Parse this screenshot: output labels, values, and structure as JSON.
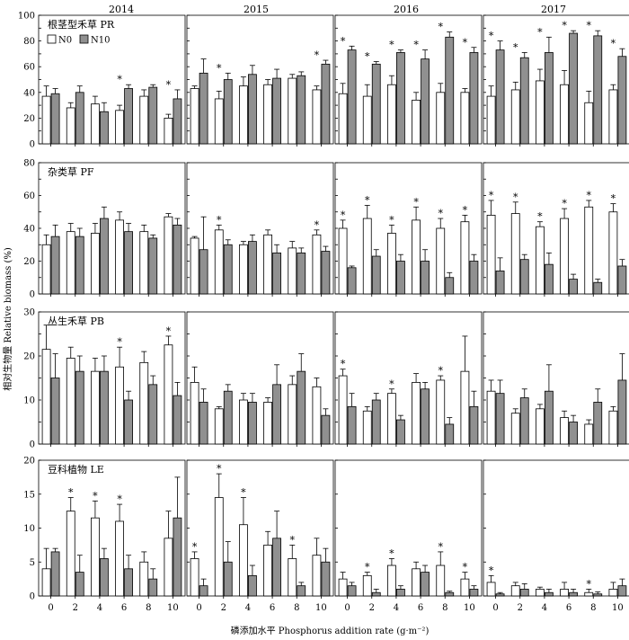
{
  "figure": {
    "ylabel": "相对生物量 Relative biomass (%)",
    "xlabel": "磷添加水平 Phosphorus addition rate (g·m⁻²)"
  },
  "legend": {
    "items": [
      "N0",
      "N10"
    ],
    "colors": [
      "#ffffff",
      "#909090"
    ],
    "placement": "inside top-left of first panel"
  },
  "years": [
    "2014",
    "2015",
    "2016",
    "2017"
  ],
  "chart_data": [
    {
      "type": "bar",
      "label": "根茎型禾草 PR",
      "ylim": [
        0,
        100
      ],
      "yticks": [
        0,
        10,
        20,
        30,
        40,
        50,
        60,
        70,
        80,
        90,
        100
      ],
      "ytick_labels": [
        "0",
        "",
        "20",
        "",
        "40",
        "",
        "60",
        "",
        "80",
        "",
        "100"
      ],
      "categories": [
        "0",
        "2",
        "4",
        "6",
        "8",
        "10"
      ],
      "panels": [
        {
          "year": "2014",
          "N0": [
            37,
            28,
            31,
            26,
            37,
            20
          ],
          "N0_err": [
            8,
            4,
            6,
            4,
            5,
            3
          ],
          "N10": [
            39,
            40,
            25,
            43,
            44,
            35
          ],
          "N10_err": [
            4,
            5,
            7,
            3,
            2,
            7
          ],
          "stars": [
            "",
            "",
            "",
            "*",
            "",
            "*"
          ]
        },
        {
          "year": "2015",
          "N0": [
            43,
            35,
            45,
            46,
            51,
            42
          ],
          "N0_err": [
            2,
            6,
            7,
            4,
            3,
            3
          ],
          "N10": [
            55,
            50,
            54,
            51,
            53,
            62
          ],
          "N10_err": [
            11,
            5,
            7,
            7,
            3,
            3
          ],
          "stars": [
            "",
            "*",
            "",
            "",
            "",
            "*"
          ]
        },
        {
          "year": "2016",
          "N0": [
            39,
            37,
            46,
            34,
            40,
            40
          ],
          "N0_err": [
            8,
            9,
            7,
            6,
            7,
            3
          ],
          "N10": [
            73,
            62,
            71,
            66,
            83,
            71
          ],
          "N10_err": [
            3,
            2,
            2,
            7,
            4,
            4
          ],
          "stars": [
            "*",
            "*",
            "*",
            "*",
            "*",
            "*"
          ]
        },
        {
          "year": "2017",
          "N0": [
            37,
            42,
            49,
            46,
            32,
            42
          ],
          "N0_err": [
            8,
            6,
            9,
            11,
            9,
            4
          ],
          "N10": [
            73,
            67,
            71,
            86,
            84,
            68
          ],
          "N10_err": [
            7,
            4,
            12,
            2,
            4,
            6
          ],
          "stars": [
            "*",
            "*",
            "*",
            "*",
            "*",
            "*"
          ]
        }
      ]
    },
    {
      "type": "bar",
      "label": "杂类草 PF",
      "ylim": [
        0,
        80
      ],
      "yticks": [
        0,
        10,
        20,
        30,
        40,
        50,
        60,
        70,
        80
      ],
      "ytick_labels": [
        "0",
        "",
        "20",
        "",
        "40",
        "",
        "60",
        "",
        "80"
      ],
      "categories": [
        "0",
        "2",
        "4",
        "6",
        "8",
        "10"
      ],
      "panels": [
        {
          "year": "2014",
          "N0": [
            30,
            38,
            37,
            45,
            38,
            47
          ],
          "N0_err": [
            6,
            5,
            6,
            5,
            4,
            2
          ],
          "N10": [
            35,
            35,
            46,
            38,
            34,
            42
          ],
          "N10_err": [
            7,
            5,
            7,
            5,
            2,
            4
          ],
          "stars": [
            "",
            "",
            "",
            "",
            "",
            ""
          ]
        },
        {
          "year": "2015",
          "N0": [
            34,
            39,
            30,
            36,
            28,
            36
          ],
          "N0_err": [
            1,
            3,
            2,
            3,
            4,
            3
          ],
          "N10": [
            27,
            30,
            32,
            25,
            25,
            26
          ],
          "N10_err": [
            20,
            3,
            4,
            5,
            3,
            3
          ],
          "stars": [
            "",
            "*",
            "",
            "",
            "",
            "*"
          ]
        },
        {
          "year": "2016",
          "N0": [
            40,
            46,
            37,
            45,
            40,
            44
          ],
          "N0_err": [
            5,
            8,
            5,
            8,
            6,
            4
          ],
          "N10": [
            16,
            23,
            20,
            20,
            10,
            20
          ],
          "N10_err": [
            1,
            4,
            4,
            7,
            3,
            4
          ],
          "stars": [
            "*",
            "*",
            "*",
            "*",
            "*",
            "*"
          ]
        },
        {
          "year": "2017",
          "N0": [
            48,
            49,
            41,
            46,
            53,
            50
          ],
          "N0_err": [
            9,
            7,
            3,
            6,
            4,
            5
          ],
          "N10": [
            14,
            21,
            18,
            9,
            7,
            17
          ],
          "N10_err": [
            8,
            3,
            7,
            3,
            2,
            4
          ],
          "stars": [
            "*",
            "*",
            "*",
            "*",
            "*",
            "*"
          ]
        }
      ]
    },
    {
      "type": "bar",
      "label": "丛生禾草 PB",
      "ylim": [
        0,
        30
      ],
      "yticks": [
        0,
        5,
        10,
        15,
        20,
        25,
        30
      ],
      "ytick_labels": [
        "0",
        "",
        "10",
        "",
        "20",
        "",
        "30"
      ],
      "categories": [
        "0",
        "2",
        "4",
        "6",
        "8",
        "10"
      ],
      "panels": [
        {
          "year": "2014",
          "N0": [
            21.5,
            19.5,
            16.5,
            17.5,
            18.5,
            22.5
          ],
          "N0_err": [
            5.5,
            2.5,
            3,
            4.5,
            2.5,
            2
          ],
          "N10": [
            15,
            16.5,
            16.5,
            10,
            13.5,
            11
          ],
          "N10_err": [
            5.5,
            3.5,
            3.5,
            2,
            2,
            3
          ],
          "stars": [
            "",
            "",
            "",
            "*",
            "",
            "*"
          ]
        },
        {
          "year": "2015",
          "N0": [
            14,
            8,
            10,
            9.5,
            13.5,
            13
          ],
          "N0_err": [
            3.5,
            0.5,
            1.5,
            1,
            2,
            2
          ],
          "N10": [
            9.5,
            12,
            9.5,
            13.5,
            16.5,
            6.5
          ],
          "N10_err": [
            3,
            1.5,
            2,
            4.5,
            4,
            1.5
          ],
          "stars": [
            "",
            "",
            "",
            "",
            "",
            ""
          ]
        },
        {
          "year": "2016",
          "N0": [
            15.5,
            7.5,
            11.5,
            14,
            14.5,
            16.5
          ],
          "N0_err": [
            1.5,
            1,
            1,
            2,
            1,
            8
          ],
          "N10": [
            8.5,
            10,
            5.5,
            12.5,
            4.5,
            8.5
          ],
          "N10_err": [
            3,
            1.5,
            1,
            1.5,
            1.5,
            3.5
          ],
          "stars": [
            "*",
            "",
            "*",
            "",
            "*",
            ""
          ]
        },
        {
          "year": "2017",
          "N0": [
            12,
            7,
            8,
            6,
            4.5,
            7.5
          ],
          "N0_err": [
            2.5,
            1,
            1,
            1.5,
            1,
            1
          ],
          "N10": [
            11.5,
            10.5,
            12,
            5,
            9.5,
            14.5
          ],
          "N10_err": [
            3,
            2,
            6,
            1.5,
            3,
            6
          ],
          "stars": [
            "",
            "",
            "",
            "",
            "",
            ""
          ]
        }
      ]
    },
    {
      "type": "bar",
      "label": "豆科植物 LE",
      "ylim": [
        0,
        20
      ],
      "yticks": [
        0,
        5,
        10,
        15,
        20
      ],
      "ytick_labels": [
        "0",
        "5",
        "10",
        "15",
        "20"
      ],
      "categories": [
        "0",
        "2",
        "4",
        "6",
        "8",
        "10"
      ],
      "panels": [
        {
          "year": "2014",
          "N0": [
            4,
            12.5,
            11.5,
            11,
            5,
            8.5
          ],
          "N0_err": [
            3,
            2,
            2.5,
            2.5,
            1.5,
            4
          ],
          "N10": [
            6.5,
            3.5,
            5.5,
            4,
            2.5,
            11.5
          ],
          "N10_err": [
            0.5,
            2.5,
            1.5,
            2,
            1.5,
            6
          ],
          "stars": [
            "",
            "*",
            "*",
            "*",
            "",
            ""
          ]
        },
        {
          "year": "2015",
          "N0": [
            5.5,
            14.5,
            10.5,
            7.5,
            5.5,
            6
          ],
          "N0_err": [
            1,
            3.5,
            4,
            2,
            2,
            2.5
          ],
          "N10": [
            1.5,
            5,
            3,
            8.5,
            1.5,
            5
          ],
          "N10_err": [
            1,
            3,
            1.5,
            4,
            0.5,
            2
          ],
          "stars": [
            "*",
            "*",
            "*",
            "",
            "*",
            ""
          ]
        },
        {
          "year": "2016",
          "N0": [
            2.5,
            3,
            4.5,
            4,
            4.5,
            2.5
          ],
          "N0_err": [
            1,
            0.5,
            1,
            1,
            2,
            1
          ],
          "N10": [
            1.5,
            0.5,
            1,
            3.5,
            0.5,
            1
          ],
          "N10_err": [
            0.5,
            0.5,
            0.5,
            1,
            0.2,
            0.5
          ],
          "stars": [
            "",
            "*",
            "*",
            "",
            "*",
            "*"
          ]
        },
        {
          "year": "2017",
          "N0": [
            2,
            1.5,
            1,
            1,
            0.5,
            1
          ],
          "N0_err": [
            1,
            0.5,
            0.3,
            1,
            0.5,
            1
          ],
          "N10": [
            0.3,
            1,
            0.5,
            0.5,
            0.3,
            1.5
          ],
          "N10_err": [
            0.2,
            0.8,
            0.5,
            0.5,
            0.3,
            1
          ],
          "stars": [
            "*",
            "",
            "",
            "",
            "*",
            ""
          ]
        }
      ]
    }
  ]
}
